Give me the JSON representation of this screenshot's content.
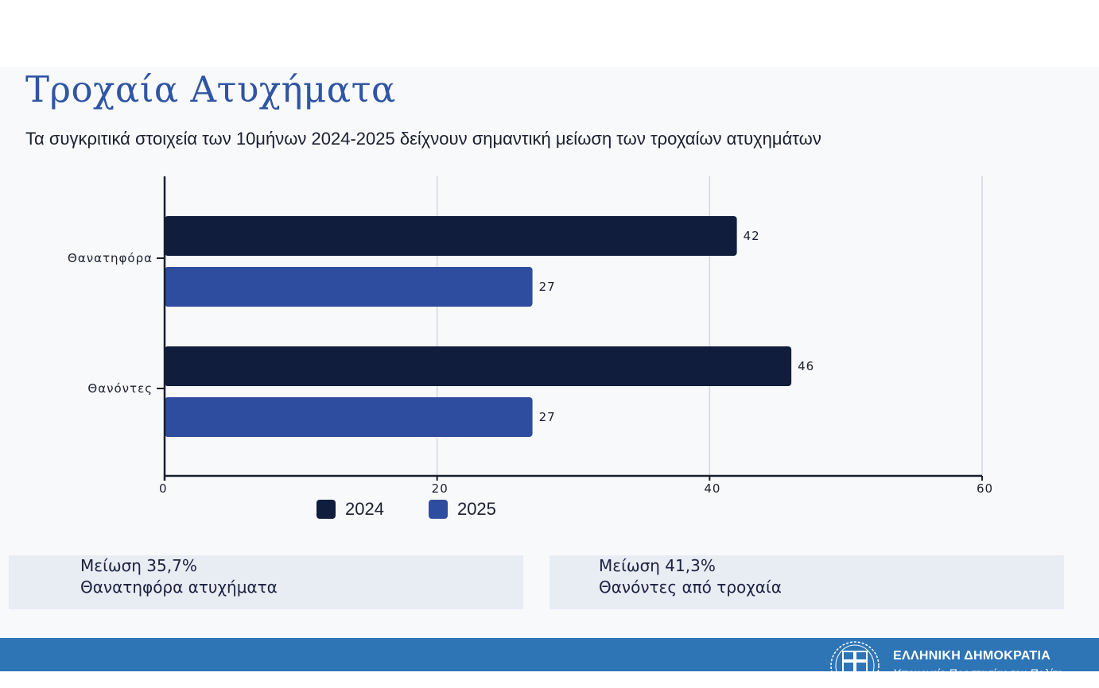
{
  "header": {
    "title": "Τροχαία Ατυχήματα",
    "subtitle": "Τα συγκριτικά στοιχεία των 10μήνων 2024-2025 δείχνουν σημαντική μείωση των τροχαίων ατυχημάτων"
  },
  "chart_data": {
    "type": "bar",
    "orientation": "horizontal",
    "categories": [
      "Θανατηφόρα",
      "Θανόντες"
    ],
    "series": [
      {
        "name": "2024",
        "values": [
          42,
          46
        ],
        "color": "#111d3c"
      },
      {
        "name": "2025",
        "values": [
          27,
          27
        ],
        "color": "#2f4d9e"
      }
    ],
    "xlim": [
      0,
      60
    ],
    "xticks": [
      0,
      20,
      40,
      60
    ],
    "grid": true,
    "legend_position": "bottom"
  },
  "legend": [
    {
      "label": "2024",
      "color": "#111d3c"
    },
    {
      "label": "2025",
      "color": "#2f4d9e"
    }
  ],
  "cards": [
    {
      "line1": "Μείωση 35,7%",
      "line2": "Θανατηφόρα ατυχήματα"
    },
    {
      "line1": "Μείωση 41,3%",
      "line2": "Θανόντες από τροχαία"
    }
  ],
  "footer": {
    "government": "ΕΛΛΗΝΙΚΗ ΔΗΜΟΚΡΑΤΙΑ",
    "ministry": "Υπουργείο Προστασίας του Πολίτη",
    "background": "#2e75b6"
  }
}
